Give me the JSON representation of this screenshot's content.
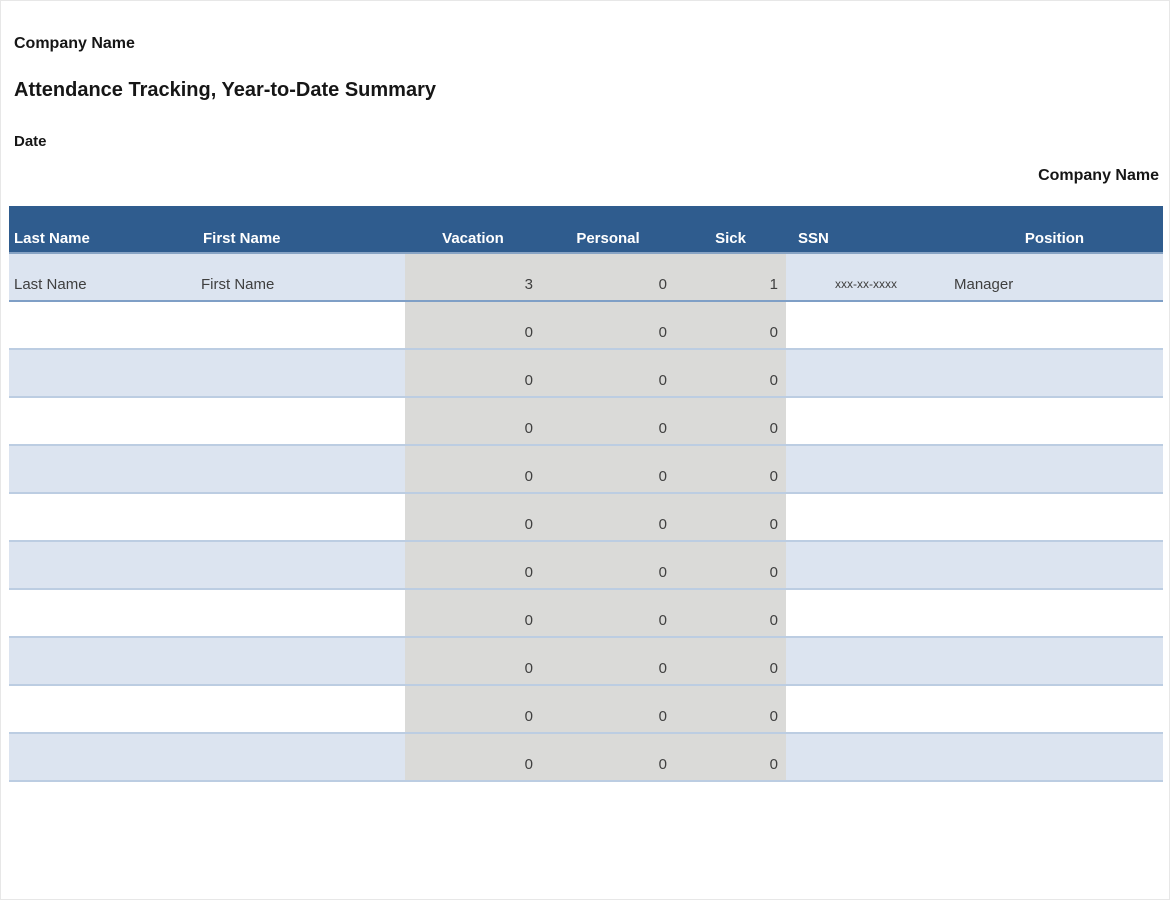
{
  "page": {
    "company_name_top": "Company Name",
    "title": "Attendance Tracking, Year-to-Date Summary",
    "date_label": "Date",
    "company_name_right": "Company Name"
  },
  "table": {
    "columns": [
      "Last Name",
      "First Name",
      "Vacation",
      "Personal",
      "Sick",
      "SSN",
      "Position"
    ],
    "rows": [
      {
        "last_name": "Last Name",
        "first_name": "First Name",
        "vacation": "3",
        "personal": "0",
        "sick": "1",
        "ssn": "xxx-xx-xxxx",
        "position": "Manager"
      },
      {
        "last_name": "",
        "first_name": "",
        "vacation": "0",
        "personal": "0",
        "sick": "0",
        "ssn": "",
        "position": ""
      },
      {
        "last_name": "",
        "first_name": "",
        "vacation": "0",
        "personal": "0",
        "sick": "0",
        "ssn": "",
        "position": ""
      },
      {
        "last_name": "",
        "first_name": "",
        "vacation": "0",
        "personal": "0",
        "sick": "0",
        "ssn": "",
        "position": ""
      },
      {
        "last_name": "",
        "first_name": "",
        "vacation": "0",
        "personal": "0",
        "sick": "0",
        "ssn": "",
        "position": ""
      },
      {
        "last_name": "",
        "first_name": "",
        "vacation": "0",
        "personal": "0",
        "sick": "0",
        "ssn": "",
        "position": ""
      },
      {
        "last_name": "",
        "first_name": "",
        "vacation": "0",
        "personal": "0",
        "sick": "0",
        "ssn": "",
        "position": ""
      },
      {
        "last_name": "",
        "first_name": "",
        "vacation": "0",
        "personal": "0",
        "sick": "0",
        "ssn": "",
        "position": ""
      },
      {
        "last_name": "",
        "first_name": "",
        "vacation": "0",
        "personal": "0",
        "sick": "0",
        "ssn": "",
        "position": ""
      },
      {
        "last_name": "",
        "first_name": "",
        "vacation": "0",
        "personal": "0",
        "sick": "0",
        "ssn": "",
        "position": ""
      },
      {
        "last_name": "",
        "first_name": "",
        "vacation": "0",
        "personal": "0",
        "sick": "0",
        "ssn": "",
        "position": ""
      }
    ]
  },
  "colors": {
    "header_bg": "#2f5c8e",
    "header_text": "#ffffff",
    "header_border": "#87a3c4",
    "row_alt": "#dce4f0",
    "row_line": "#bccde2",
    "first_row_line": "#7f9fc6",
    "gray_col": "#dadad8"
  }
}
